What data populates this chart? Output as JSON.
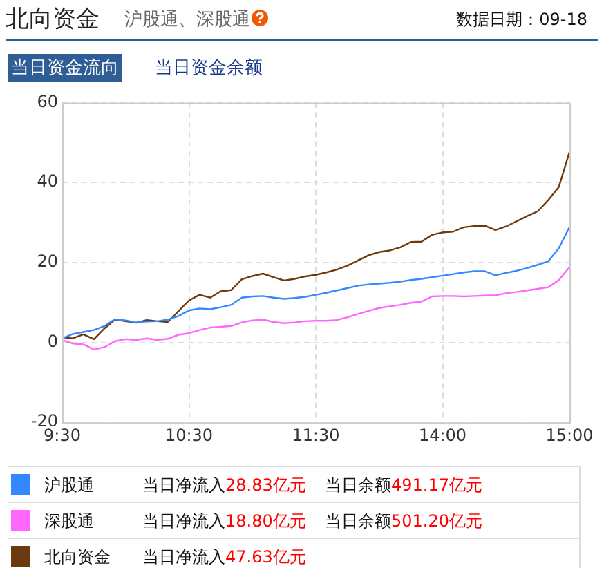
{
  "chart_data": {
    "type": "line",
    "title": "北向资金",
    "subtitle": "沪股通、深股通",
    "annotations": [
      "数据日期：09-18",
      "当日资金流向",
      "当日资金余额",
      "当日净流入",
      "28.83亿元",
      "当日净流入",
      "18.80亿元",
      "当日净流入",
      "47.63亿元",
      "当日余额",
      "491.17亿元",
      "当日余额",
      "501.20亿元"
    ],
    "categories": [
      "9:30",
      null,
      null,
      null,
      null,
      null,
      null,
      null,
      null,
      null,
      null,
      null,
      "10:30",
      null,
      null,
      null,
      null,
      null,
      null,
      null,
      null,
      null,
      null,
      null,
      "11:30",
      null,
      null,
      null,
      null,
      null,
      null,
      null,
      null,
      null,
      null,
      null,
      "14:00",
      null,
      null,
      null,
      null,
      null,
      null,
      null,
      null,
      null,
      null,
      null,
      "15:00"
    ],
    "ylim": [
      -20,
      60
    ],
    "yticks": [
      -20,
      0,
      20,
      40,
      60
    ],
    "grid": true,
    "legend": "bottom",
    "marker": "none",
    "line_style": "solid",
    "series": [
      {
        "name": "沪股通",
        "color": "#3388ff",
        "values": [
          1,
          2.1,
          2.6,
          3.1,
          4.1,
          5.8,
          5.5,
          5,
          5.2,
          5.3,
          5.7,
          6.6,
          8,
          8.5,
          8.3,
          8.8,
          9.4,
          11.2,
          11.5,
          11.6,
          11.2,
          10.9,
          11.1,
          11.4,
          11.9,
          12.4,
          13,
          13.6,
          14.2,
          14.5,
          14.7,
          14.9,
          15.2,
          15.6,
          15.9,
          16.3,
          16.7,
          17.1,
          17.5,
          17.8,
          17.8,
          16.8,
          17.4,
          17.9,
          18.6,
          19.4,
          20.3,
          23.6,
          28.8
        ]
      },
      {
        "name": "深股通",
        "color": "#ff66ff",
        "values": [
          0.6,
          -0.3,
          -0.5,
          -1.8,
          -1.2,
          0.3,
          0.8,
          0.6,
          1,
          0.6,
          0.9,
          1.9,
          2.3,
          3.1,
          3.7,
          3.9,
          4.1,
          5,
          5.5,
          5.7,
          5.1,
          4.8,
          5,
          5.3,
          5.4,
          5.4,
          5.6,
          6.3,
          7.1,
          7.9,
          8.6,
          9,
          9.4,
          9.9,
          10.2,
          11.5,
          11.6,
          11.6,
          11.5,
          11.6,
          11.7,
          11.8,
          12.3,
          12.6,
          13,
          13.4,
          13.8,
          15.6,
          18.8
        ]
      },
      {
        "name": "北向资金",
        "color": "#6b3a0f",
        "values": [
          1.3,
          1,
          2,
          0.8,
          3.5,
          5.7,
          5.3,
          4.9,
          5.6,
          5.3,
          5.1,
          7.8,
          10.5,
          11.9,
          11.2,
          12.8,
          13.1,
          15.8,
          16.6,
          17.2,
          16.3,
          15.5,
          15.9,
          16.5,
          16.9,
          17.5,
          18.2,
          19.2,
          20.5,
          21.8,
          22.6,
          23,
          23.8,
          25.1,
          25.2,
          26.9,
          27.5,
          27.7,
          28.8,
          29.1,
          29.2,
          28.1,
          29,
          30.3,
          31.6,
          32.8,
          35.6,
          38.9,
          47.6
        ]
      }
    ]
  }
}
